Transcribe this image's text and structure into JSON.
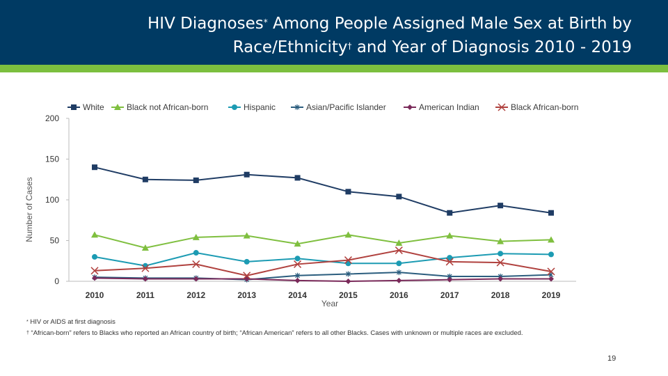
{
  "header": {
    "title_line1": "HIV Diagnoses",
    "title_sup1": "*",
    "title_line1_rest": " Among People Assigned Male Sex at Birth by",
    "title_line2": "Race/Ethnicity",
    "title_sup2": "†",
    "title_line2_rest": " and Year of Diagnosis 2010 - 2019",
    "colors": {
      "band": "#003a63",
      "stripe": "#7cbf3f"
    }
  },
  "chart_data": {
    "type": "line",
    "xlabel": "Year",
    "ylabel": "Number of Cases",
    "ylim": [
      0,
      200
    ],
    "yticks": [
      0,
      50,
      100,
      150,
      200
    ],
    "categories": [
      "2010",
      "2011",
      "2012",
      "2013",
      "2014",
      "2015",
      "2016",
      "2017",
      "2018",
      "2019"
    ],
    "legend_position": "top",
    "series": [
      {
        "name": "White",
        "color": "#1f3c64",
        "marker": "square",
        "values": [
          140,
          125,
          124,
          131,
          127,
          110,
          104,
          84,
          93,
          84
        ]
      },
      {
        "name": "Black not African-born",
        "color": "#7fbf3f",
        "marker": "triangle",
        "values": [
          57,
          41,
          54,
          56,
          46,
          57,
          47,
          56,
          49,
          51
        ]
      },
      {
        "name": "Hispanic",
        "color": "#1c9bb3",
        "marker": "circle",
        "values": [
          30,
          19,
          35,
          24,
          28,
          22,
          22,
          29,
          34,
          33
        ]
      },
      {
        "name": "Asian/Pacific Islander",
        "color": "#2b5d7e",
        "marker": "star",
        "values": [
          5,
          4,
          4,
          2,
          7,
          9,
          11,
          6,
          6,
          8
        ]
      },
      {
        "name": "American Indian",
        "color": "#7a2a5a",
        "marker": "diamond",
        "values": [
          4,
          3,
          3,
          3,
          1,
          0,
          1,
          2,
          3,
          3
        ]
      },
      {
        "name": "Black African-born",
        "color": "#b0413e",
        "marker": "x",
        "values": [
          13,
          16,
          21,
          7,
          21,
          26,
          38,
          24,
          23,
          12
        ]
      }
    ]
  },
  "footnotes": {
    "note1_mark": "*",
    "note1": " HIV or AIDS at first diagnosis",
    "note2_mark": "†",
    "note2": " “African-born” refers to Blacks who reported an African country of birth; “African American” refers to all other Blacks.  Cases with unknown or  multiple races are excluded."
  },
  "page_number": "19"
}
